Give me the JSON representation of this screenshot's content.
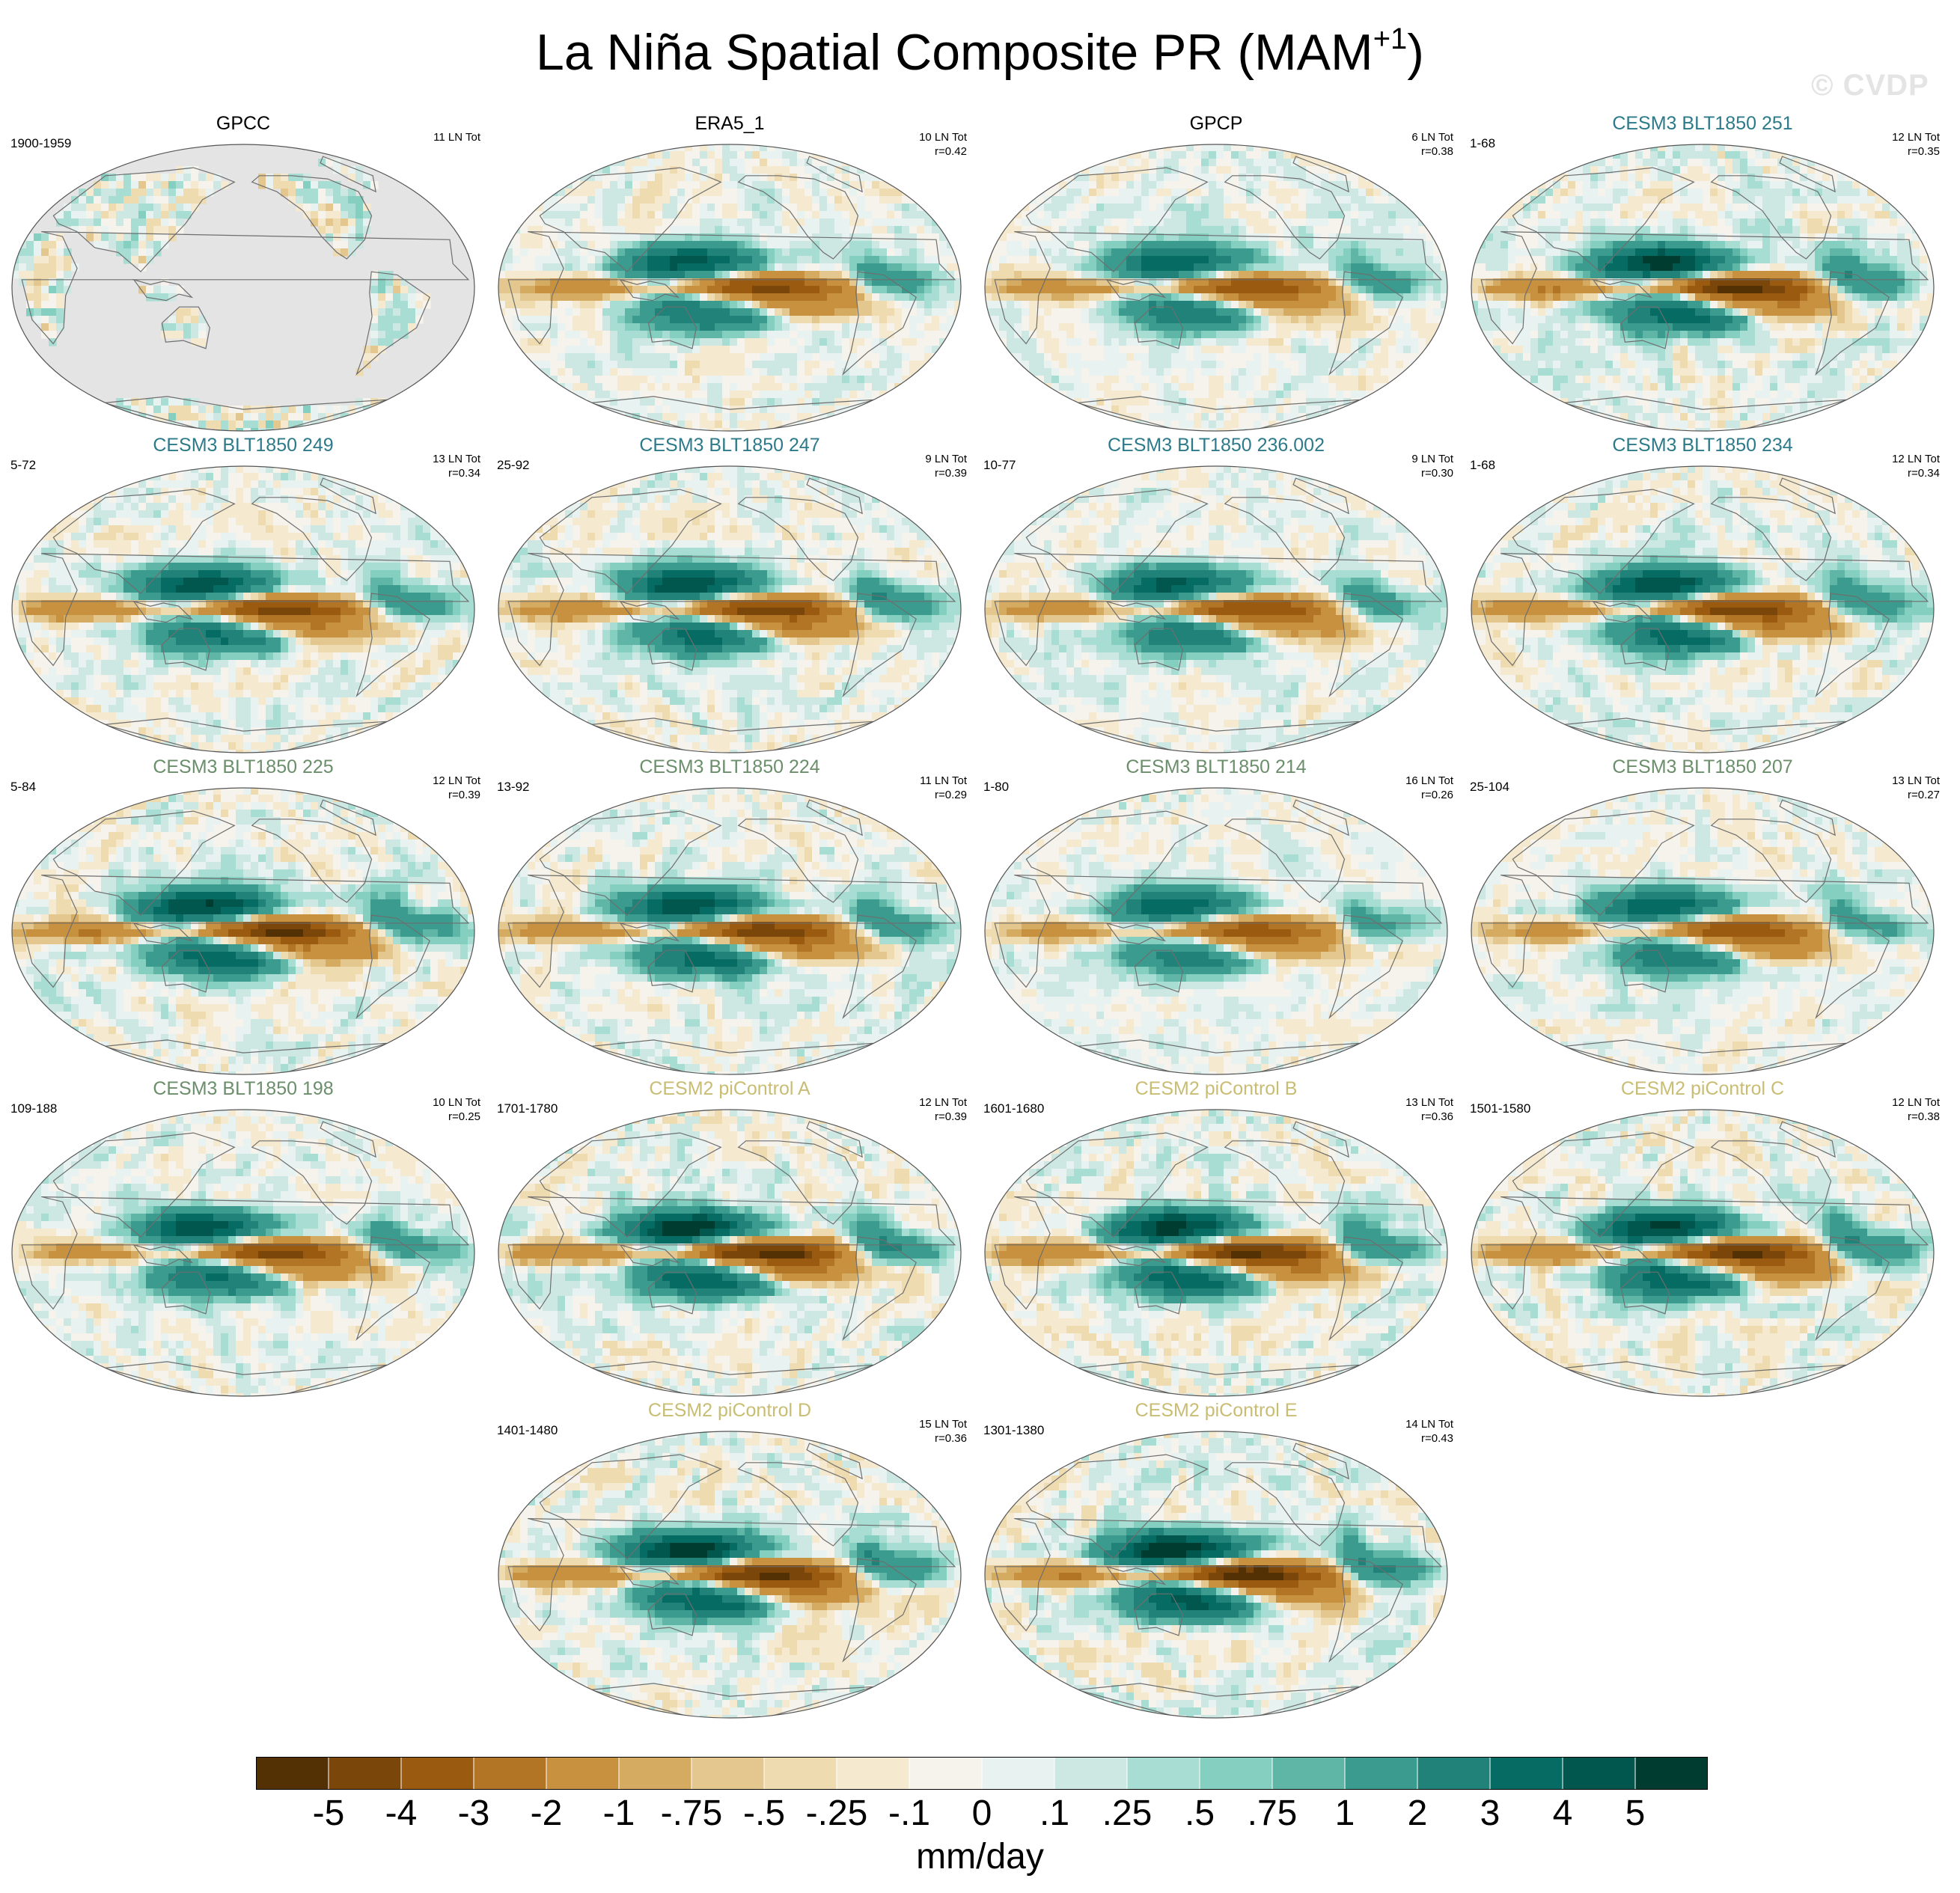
{
  "title": {
    "text": "La Niña Spatial Composite PR (MAM",
    "superscript": "+1",
    "suffix": ")"
  },
  "watermark": "© CVDP",
  "colors": {
    "title_obs": "#000000",
    "title_cesm3_blue": "#2d7a8a",
    "title_cesm3_green": "#6b8e6b",
    "title_cesm2": "#c9bd74",
    "land_mask": "#e4e4e4",
    "coast": "#6e6e6e"
  },
  "panels": [
    {
      "title": "GPCC",
      "title_color": "obs",
      "range": "1900-1959",
      "count": "11 LN Tot",
      "corr": "",
      "kind": "gpcc",
      "amp": 0.0
    },
    {
      "title": "ERA5_1",
      "title_color": "obs",
      "range": "",
      "count": "10 LN Tot",
      "corr": "r=0.42",
      "kind": "obs",
      "amp": 0.8
    },
    {
      "title": "GPCP",
      "title_color": "obs",
      "range": "",
      "count": "6 LN Tot",
      "corr": "r=0.38",
      "kind": "obs",
      "amp": 0.75
    },
    {
      "title": "CESM3 BLT1850 251",
      "title_color": "cesm3_blue",
      "range": "1-68",
      "count": "12 LN Tot",
      "corr": "r=0.35",
      "kind": "model",
      "amp": 1.0
    },
    {
      "title": "CESM3 BLT1850 249",
      "title_color": "cesm3_blue",
      "range": "5-72",
      "count": "13 LN Tot",
      "corr": "r=0.34",
      "kind": "model",
      "amp": 0.85
    },
    {
      "title": "CESM3 BLT1850 247",
      "title_color": "cesm3_blue",
      "range": "25-92",
      "count": "9 LN Tot",
      "corr": "r=0.39",
      "kind": "model",
      "amp": 0.9
    },
    {
      "title": "CESM3 BLT1850 236.002",
      "title_color": "cesm3_blue",
      "range": "10-77",
      "count": "9 LN Tot",
      "corr": "r=0.30",
      "kind": "model",
      "amp": 0.8
    },
    {
      "title": "CESM3 BLT1850 234",
      "title_color": "cesm3_blue",
      "range": "1-68",
      "count": "12 LN Tot",
      "corr": "r=0.34",
      "kind": "model",
      "amp": 0.9
    },
    {
      "title": "CESM3 BLT1850 225",
      "title_color": "cesm3_green",
      "range": "5-84",
      "count": "12 LN Tot",
      "corr": "r=0.39",
      "kind": "model",
      "amp": 1.0
    },
    {
      "title": "CESM3 BLT1850 224",
      "title_color": "cesm3_green",
      "range": "13-92",
      "count": "11 LN Tot",
      "corr": "r=0.29",
      "kind": "model",
      "amp": 0.9
    },
    {
      "title": "CESM3 BLT1850 214",
      "title_color": "cesm3_green",
      "range": "1-80",
      "count": "16 LN Tot",
      "corr": "r=0.26",
      "kind": "model",
      "amp": 0.7
    },
    {
      "title": "CESM3 BLT1850 207",
      "title_color": "cesm3_green",
      "range": "25-104",
      "count": "13 LN Tot",
      "corr": "r=0.27",
      "kind": "model",
      "amp": 0.75
    },
    {
      "title": "CESM3 BLT1850 198",
      "title_color": "cesm3_green",
      "range": "109-188",
      "count": "10 LN Tot",
      "corr": "r=0.25",
      "kind": "model",
      "amp": 0.85
    },
    {
      "title": "CESM2 piControl A",
      "title_color": "cesm2",
      "range": "1701-1780",
      "count": "12 LN Tot",
      "corr": "r=0.39",
      "kind": "model",
      "amp": 1.05
    },
    {
      "title": "CESM2 piControl B",
      "title_color": "cesm2",
      "range": "1601-1680",
      "count": "13 LN Tot",
      "corr": "r=0.36",
      "kind": "model",
      "amp": 1.0
    },
    {
      "title": "CESM2 piControl C",
      "title_color": "cesm2",
      "range": "1501-1580",
      "count": "12 LN Tot",
      "corr": "r=0.38",
      "kind": "model",
      "amp": 1.0
    },
    {
      "title": "CESM2 piControl D",
      "title_color": "cesm2",
      "range": "1401-1480",
      "count": "15 LN Tot",
      "corr": "r=0.36",
      "kind": "model",
      "amp": 1.05
    },
    {
      "title": "CESM2 piControl E",
      "title_color": "cesm2",
      "range": "1301-1380",
      "count": "14 LN Tot",
      "corr": "r=0.43",
      "kind": "model",
      "amp": 1.1
    }
  ],
  "colorbar": {
    "colors": [
      "#543005",
      "#7a4609",
      "#9a5b10",
      "#b27526",
      "#c7913f",
      "#d5ab62",
      "#e4c78f",
      "#efdbb0",
      "#f5ead0",
      "#f5f3ec",
      "#e8f2f0",
      "#cde8e3",
      "#a7ddd3",
      "#85cfc1",
      "#5fb6a7",
      "#3b9b8e",
      "#218279",
      "#066b62",
      "#01574e",
      "#003c30"
    ],
    "labels": [
      "-5",
      "-4",
      "-3",
      "-2",
      "-1",
      "-.75",
      "-.5",
      "-.25",
      "-.1",
      "0",
      ".1",
      ".25",
      ".5",
      ".75",
      "1",
      "2",
      "3",
      "4",
      "5"
    ],
    "units": "mm/day"
  }
}
